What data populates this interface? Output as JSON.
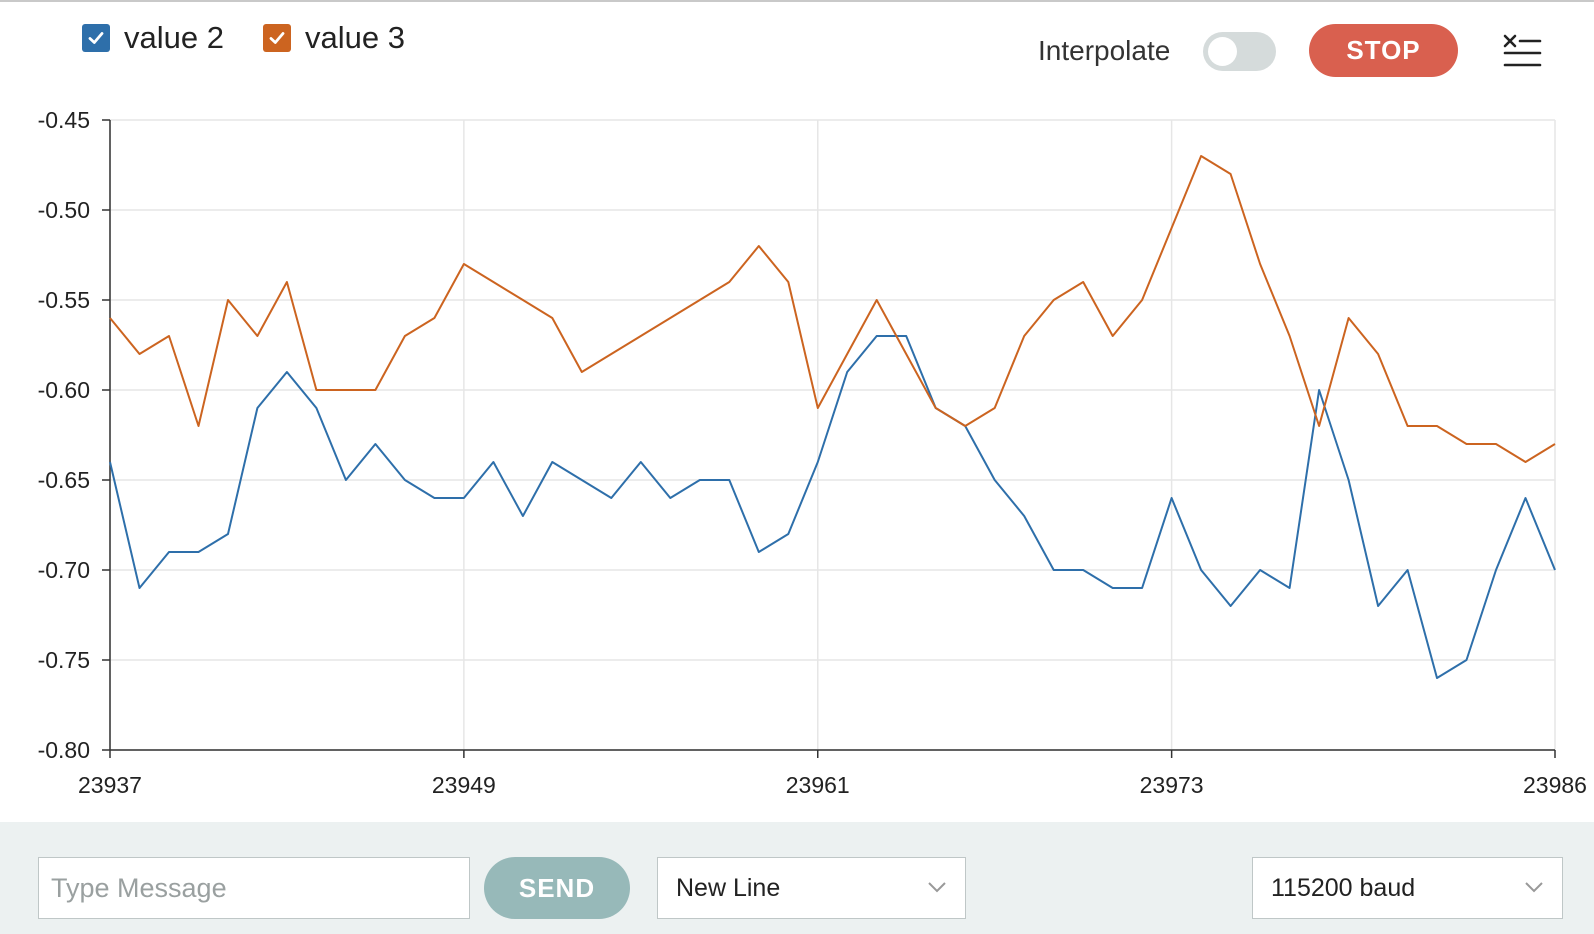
{
  "legend": {
    "items": [
      {
        "label": "value 2",
        "color": "#2e6faa",
        "checked": true
      },
      {
        "label": "value 3",
        "color": "#cc6420",
        "checked": true
      }
    ]
  },
  "controls": {
    "interpolate_label": "Interpolate",
    "interpolate_on": false,
    "stop_label": "STOP",
    "clear_icon": "clear-output-icon"
  },
  "chart_data": {
    "type": "line",
    "x_range": [
      23937,
      23986
    ],
    "ylim": [
      -0.8,
      -0.45
    ],
    "x_ticks": [
      "23937",
      "23949",
      "23961",
      "23973",
      "23986"
    ],
    "y_ticks": [
      "-0.45",
      "-0.50",
      "-0.55",
      "-0.60",
      "-0.65",
      "-0.70",
      "-0.75",
      "-0.80"
    ],
    "x": [
      23937,
      23938,
      23939,
      23940,
      23941,
      23942,
      23943,
      23944,
      23945,
      23946,
      23947,
      23948,
      23949,
      23950,
      23951,
      23952,
      23953,
      23954,
      23955,
      23956,
      23957,
      23958,
      23959,
      23960,
      23961,
      23962,
      23963,
      23964,
      23965,
      23966,
      23967,
      23968,
      23969,
      23970,
      23971,
      23972,
      23973,
      23974,
      23975,
      23976,
      23977,
      23978,
      23979,
      23980,
      23981,
      23982,
      23983,
      23984,
      23985,
      23986
    ],
    "grid": true,
    "series": [
      {
        "name": "value 2",
        "color": "#2e6faa",
        "values": [
          -0.64,
          -0.71,
          -0.69,
          -0.69,
          -0.68,
          -0.61,
          -0.59,
          -0.61,
          -0.65,
          -0.63,
          -0.65,
          -0.66,
          -0.66,
          -0.64,
          -0.67,
          -0.64,
          -0.65,
          -0.66,
          -0.64,
          -0.66,
          -0.65,
          -0.65,
          -0.69,
          -0.68,
          -0.64,
          -0.59,
          -0.57,
          -0.57,
          -0.61,
          -0.62,
          -0.65,
          -0.67,
          -0.7,
          -0.7,
          -0.71,
          -0.71,
          -0.66,
          -0.7,
          -0.72,
          -0.7,
          -0.71,
          -0.6,
          -0.65,
          -0.72,
          -0.7,
          -0.76,
          -0.75,
          -0.7,
          -0.66,
          -0.7
        ]
      },
      {
        "name": "value 3",
        "color": "#cc6420",
        "values": [
          -0.56,
          -0.58,
          -0.57,
          -0.62,
          -0.55,
          -0.57,
          -0.54,
          -0.6,
          -0.6,
          -0.6,
          -0.57,
          -0.56,
          -0.53,
          -0.54,
          -0.55,
          -0.56,
          -0.59,
          -0.58,
          -0.57,
          -0.56,
          -0.55,
          -0.54,
          -0.52,
          -0.54,
          -0.61,
          -0.58,
          -0.55,
          -0.58,
          -0.61,
          -0.62,
          -0.61,
          -0.57,
          -0.55,
          -0.54,
          -0.57,
          -0.55,
          -0.51,
          -0.47,
          -0.48,
          -0.53,
          -0.57,
          -0.62,
          -0.56,
          -0.58,
          -0.62,
          -0.62,
          -0.63,
          -0.63,
          -0.64,
          -0.63
        ]
      }
    ]
  },
  "bottom": {
    "message_placeholder": "Type Message",
    "message_value": "",
    "send_label": "SEND",
    "line_ending": "New Line",
    "baud": "115200 baud"
  }
}
